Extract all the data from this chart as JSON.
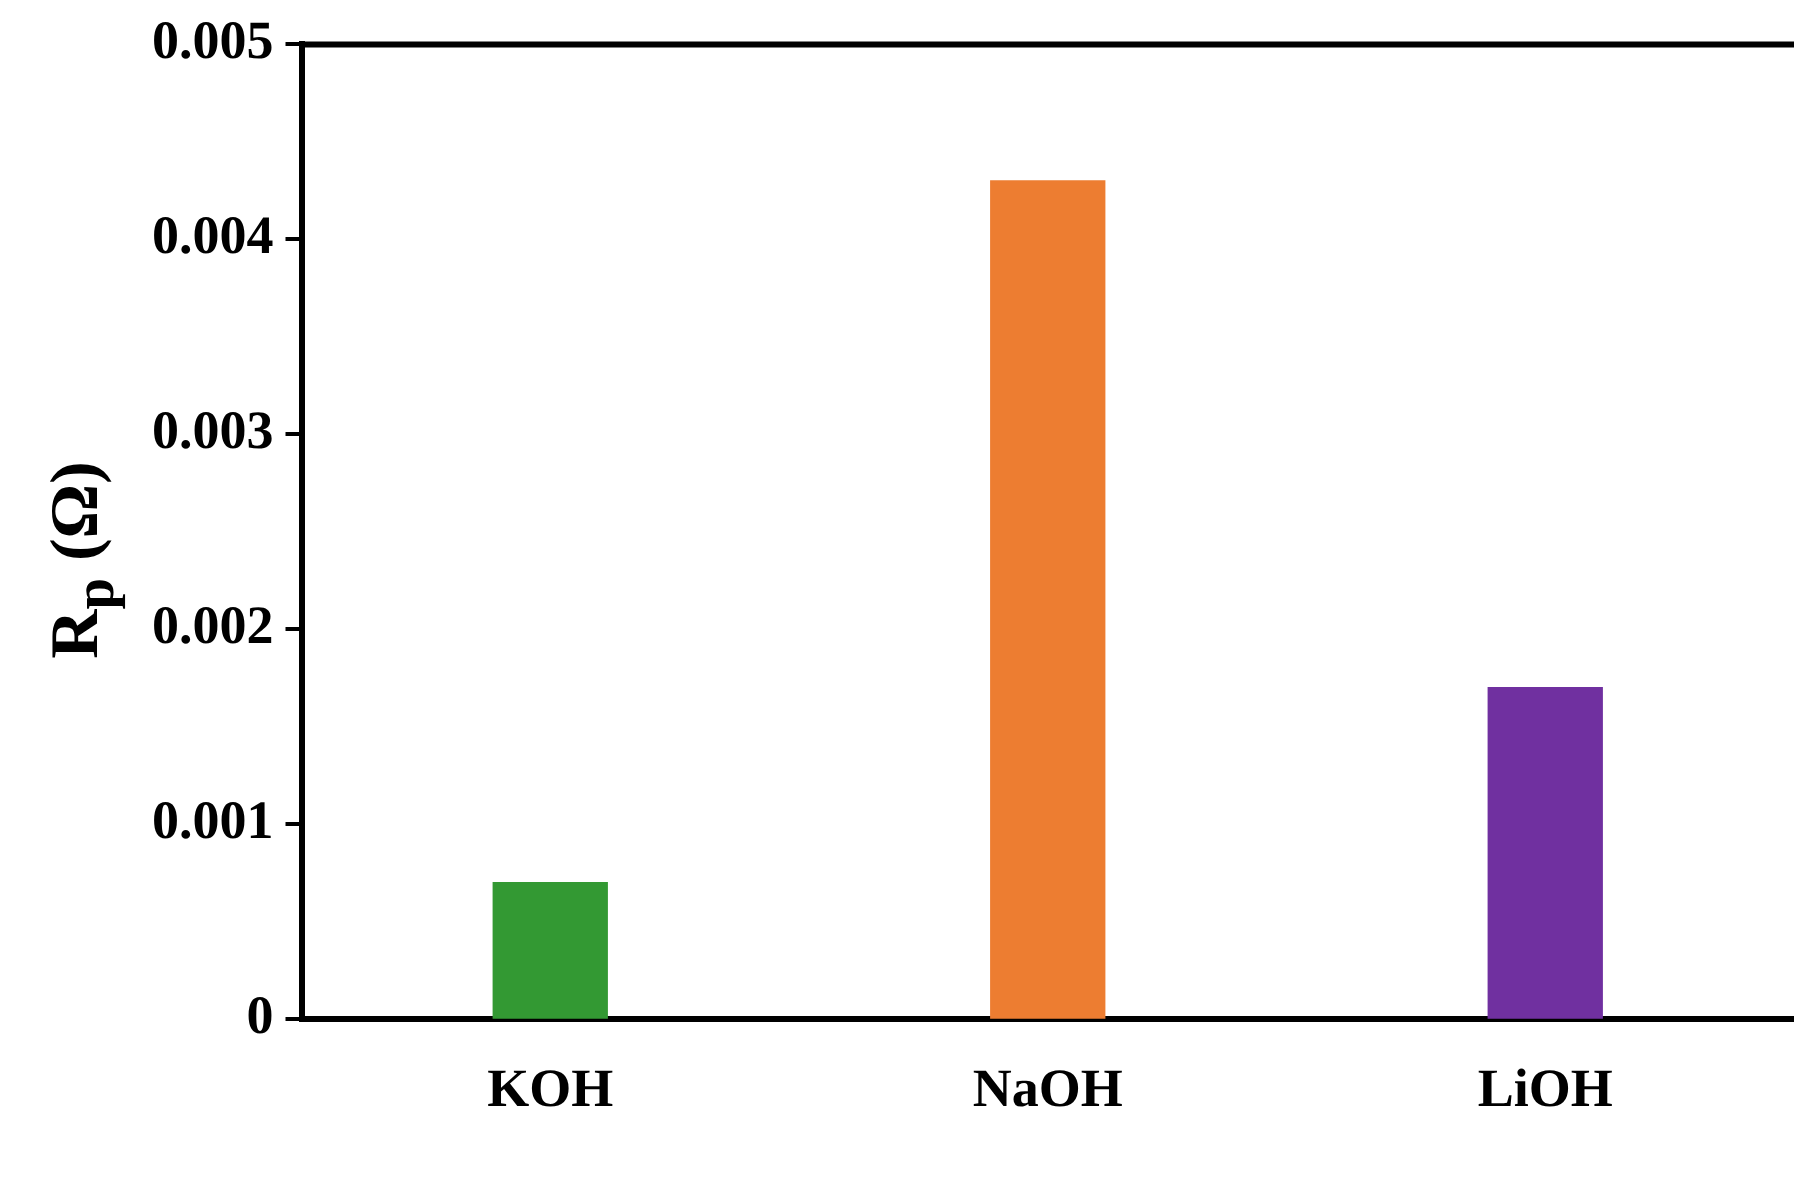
{
  "chart_data": {
    "type": "bar",
    "ylabel": "R$_{p}$ (Ω)",
    "categories": [
      "KOH",
      "NaOH",
      "LiOH"
    ],
    "values": [
      0.0007,
      0.0043,
      0.0017
    ],
    "colors": [
      "#339933",
      "#ed7d31",
      "#7030a0"
    ],
    "ylim": [
      0,
      0.005
    ],
    "yticks": [
      0,
      0.001,
      0.002,
      0.003,
      0.004,
      0.005
    ],
    "grid": false,
    "legend": false
  }
}
